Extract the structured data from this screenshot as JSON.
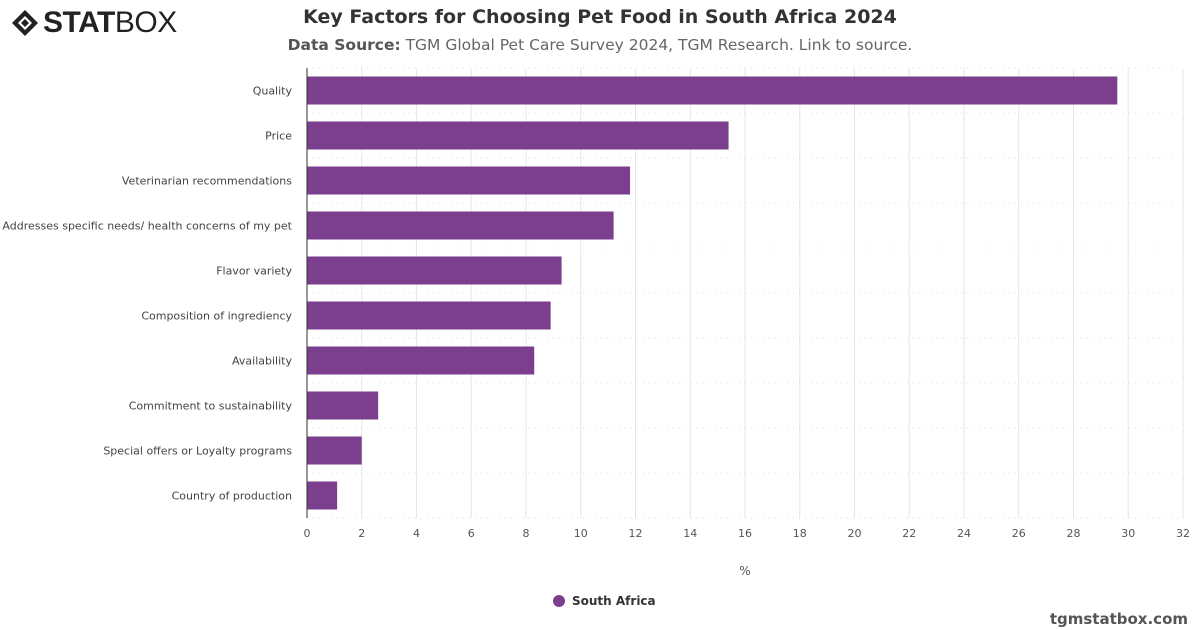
{
  "brand": {
    "logo_bold": "STAT",
    "logo_light": "BOX"
  },
  "title": "Key Factors for Choosing Pet Food in South Africa 2024",
  "subtitle": {
    "label": "Data Source:",
    "text": " TGM Global Pet Care Survey 2024, TGM Research. Link to source."
  },
  "credit": "tgmstatbox.com",
  "chart_data": {
    "type": "bar",
    "orientation": "horizontal",
    "categories": [
      "Quality",
      "Price",
      "Veterinarian recommendations",
      "Addresses specific needs/ health concerns of my pet",
      "Flavor variety",
      "Composition of ingrediency",
      "Availability",
      "Commitment to sustainability",
      "Special offers or Loyalty programs",
      "Country of production"
    ],
    "series": [
      {
        "name": "South Africa",
        "color": "#7b3f8e",
        "values": [
          29.6,
          15.4,
          11.8,
          11.2,
          9.3,
          8.9,
          8.3,
          2.6,
          2.0,
          1.1
        ]
      }
    ],
    "xlabel": "%",
    "xlim": [
      0,
      32
    ],
    "xticks": [
      0,
      2,
      4,
      6,
      8,
      10,
      12,
      14,
      16,
      18,
      20,
      22,
      24,
      26,
      28,
      30,
      32
    ],
    "grid": true,
    "legend": "bottom-center"
  }
}
